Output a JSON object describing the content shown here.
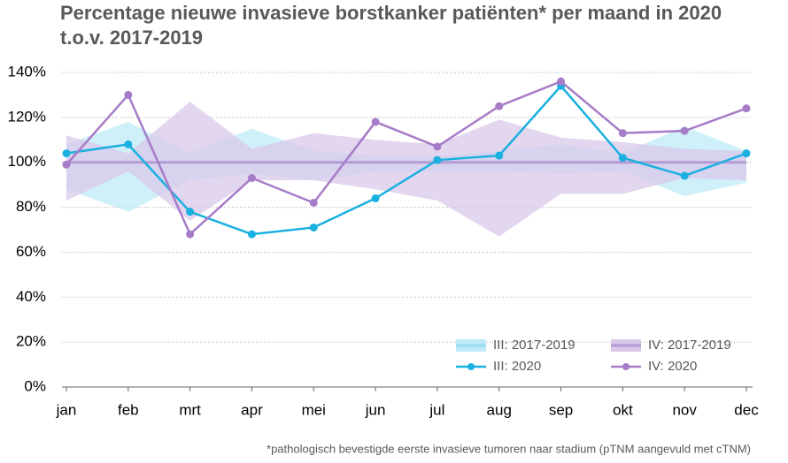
{
  "chart_data": {
    "type": "line",
    "title": [
      "Percentage nieuwe invasieve borstkanker patiënten* per maand in 2020",
      "t.o.v. 2017-2019"
    ],
    "footnote": "*pathologisch bevestigde eerste invasieve tumoren naar stadium (pTNM aangevuld met cTNM)",
    "categories": [
      "jan",
      "feb",
      "mrt",
      "apr",
      "mei",
      "jun",
      "jul",
      "aug",
      "sep",
      "okt",
      "nov",
      "dec"
    ],
    "ylim": [
      0,
      140
    ],
    "yticks": [
      {
        "value": 0,
        "label": "0%"
      },
      {
        "value": 20,
        "label": "20%"
      },
      {
        "value": 40,
        "label": "40%"
      },
      {
        "value": 60,
        "label": "60%"
      },
      {
        "value": 80,
        "label": "80%"
      },
      {
        "value": 100,
        "label": "100%"
      },
      {
        "value": 120,
        "label": "120%"
      },
      {
        "value": 140,
        "label": "140%"
      }
    ],
    "grid": true,
    "reference_line": 100,
    "reference_color": "#b49bd6",
    "bands": [
      {
        "name": "III: 2017-2019",
        "color": "#bfe9f7",
        "lower": [
          88,
          78,
          92,
          95,
          92,
          96,
          96,
          96,
          95,
          96,
          85,
          91
        ],
        "upper": [
          108,
          118,
          104,
          115,
          105,
          103,
          103,
          105,
          108,
          104,
          116,
          105
        ]
      },
      {
        "name": "IV: 2017-2019",
        "color": "#d9c8ea",
        "lower": [
          83,
          96,
          74,
          92,
          92,
          88,
          83,
          67,
          86,
          86,
          93,
          92
        ],
        "upper": [
          112,
          104,
          127,
          106,
          113,
          110,
          108,
          119,
          111,
          109,
          106,
          105
        ]
      }
    ],
    "series": [
      {
        "name": "III: 2020",
        "color": "#1ab0e0",
        "values": [
          104,
          108,
          78,
          68,
          71,
          84,
          101,
          103,
          134,
          102,
          94,
          104
        ]
      },
      {
        "name": "IV: 2020",
        "color": "#a67cc8",
        "values": [
          99,
          130,
          68,
          93,
          82,
          118,
          107,
          125,
          136,
          113,
          114,
          124
        ]
      }
    ]
  }
}
